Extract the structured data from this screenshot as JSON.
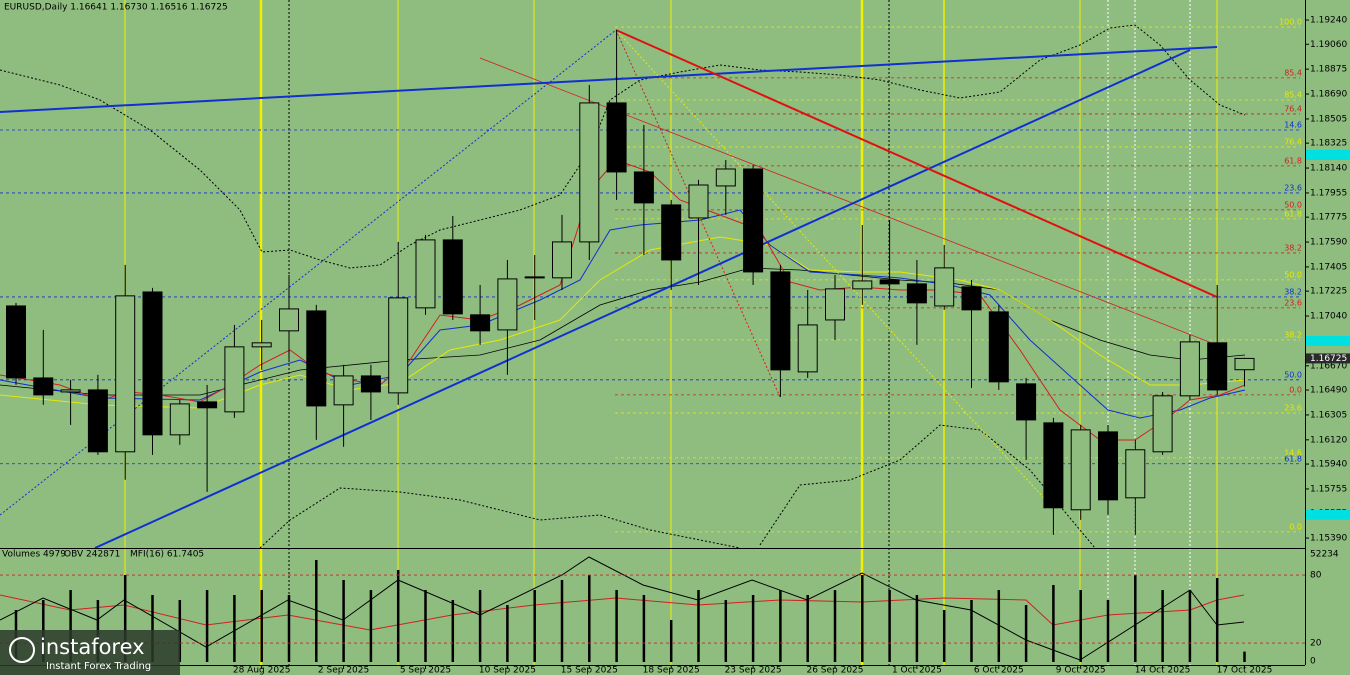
{
  "chart_data": {
    "type": "candlestick",
    "title": "EURUSD,Daily  1.16641 1.16730 1.16516 1.16725",
    "categories": [
      null,
      null,
      null,
      null,
      null,
      null,
      null,
      null,
      null,
      "28 Aug 2025",
      null,
      null,
      "2 Sep 2025",
      null,
      null,
      "5 Sep 2025",
      null,
      null,
      "10 Sep 2025",
      null,
      null,
      "15 Sep 2025",
      null,
      null,
      "18 Sep 2025",
      null,
      null,
      "23 Sep 2025",
      null,
      null,
      "26 Sep 2025",
      null,
      null,
      "1 Oct 2025",
      null,
      null,
      "6 Oct 2025",
      null,
      null,
      "9 Oct 2025",
      null,
      null,
      "14 Oct 2025",
      null,
      null,
      "17 Oct 2025"
    ],
    "open": [
      1.17115,
      1.1658,
      1.16476,
      1.16491,
      1.16031,
      1.17219,
      1.16157,
      1.16402,
      1.16328,
      1.16811,
      1.1693,
      1.17078,
      1.1638,
      1.16595,
      1.16469,
      1.17101,
      1.17606,
      1.17049,
      1.16937,
      1.17331,
      1.17324,
      1.17591,
      1.18624,
      1.18111,
      1.17866,
      1.17769,
      1.18007,
      1.18133,
      1.17368,
      1.16625,
      1.17011,
      1.17242,
      1.17309,
      1.17279,
      1.17115,
      1.17257,
      1.17071,
      1.16536,
      1.16246,
      1.156,
      1.16179,
      1.15689,
      1.16031,
      1.16447,
      1.16841,
      1.16641
    ],
    "high": [
      1.17138,
      1.16937,
      1.16566,
      1.16603,
      1.1742,
      1.17249,
      1.16417,
      1.16528,
      1.16974,
      1.17011,
      1.17346,
      1.17123,
      1.16677,
      1.16677,
      1.17591,
      1.17643,
      1.17784,
      1.17271,
      1.17457,
      1.17494,
      1.17792,
      1.18757,
      1.19166,
      1.1846,
      1.17903,
      1.18052,
      1.182,
      1.18163,
      1.1742,
      1.17234,
      1.17346,
      1.17717,
      1.17754,
      1.17457,
      1.17569,
      1.17309,
      1.17123,
      1.1658,
      1.16283,
      1.16231,
      1.16231,
      1.1612,
      1.16476,
      1.169,
      1.17271,
      1.1673
    ],
    "low": [
      1.16528,
      1.1638,
      1.16231,
      1.16008,
      1.15823,
      1.16008,
      1.16083,
      1.15733,
      1.16283,
      1.1664,
      1.16714,
      1.1612,
      1.16068,
      1.16268,
      1.1638,
      1.17049,
      1.17011,
      1.16826,
      1.16603,
      1.17011,
      1.17234,
      1.17457,
      1.17903,
      1.17494,
      1.17234,
      1.17271,
      1.17792,
      1.17271,
      1.16439,
      1.1658,
      1.16863,
      1.17123,
      1.1716,
      1.16826,
      1.17086,
      1.16506,
      1.16491,
      1.15971,
      1.15414,
      1.15525,
      1.15563,
      1.15414,
      1.16008,
      1.16417,
      1.16454,
      1.16516
    ],
    "close": [
      1.1658,
      1.16454,
      1.16491,
      1.16031,
      1.1719,
      1.16157,
      1.16387,
      1.16358,
      1.16811,
      1.16841,
      1.17093,
      1.16372,
      1.16595,
      1.16476,
      1.17175,
      1.17606,
      1.17056,
      1.1693,
      1.17316,
      1.17324,
      1.17591,
      1.18624,
      1.18111,
      1.17881,
      1.17457,
      1.18014,
      1.18133,
      1.17368,
      1.1664,
      1.16974,
      1.17242,
      1.17301,
      1.17279,
      1.17138,
      1.17398,
      1.17086,
      1.16551,
      1.16268,
      1.15615,
      1.16194,
      1.15674,
      1.16046,
      1.16447,
      1.16848,
      1.16491,
      1.16725
    ],
    "up_color": "#8fbd80",
    "down_color": "#000000",
    "ylim": [
      1.15316,
      1.19389
    ],
    "yticks": [
      {
        "value": 1.1924,
        "label": "1.19240"
      },
      {
        "value": 1.1906,
        "label": "1.19060"
      },
      {
        "value": 1.18875,
        "label": "1.18875"
      },
      {
        "value": 1.1869,
        "label": "1.18690"
      },
      {
        "value": 1.18505,
        "label": "1.18505"
      },
      {
        "value": 1.18325,
        "label": "1.18325"
      },
      {
        "value": 1.1814,
        "label": "1.18140"
      },
      {
        "value": 1.17955,
        "label": "1.17955"
      },
      {
        "value": 1.17775,
        "label": "1.17775"
      },
      {
        "value": 1.1759,
        "label": "1.17590"
      },
      {
        "value": 1.17405,
        "label": "1.17405"
      },
      {
        "value": 1.17225,
        "label": "1.17225"
      },
      {
        "value": 1.1704,
        "label": "1.17040"
      },
      {
        "value": 1.16855,
        "label": "1.16855"
      },
      {
        "value": 1.1667,
        "label": "1.16670"
      },
      {
        "value": 1.1649,
        "label": "1.16490"
      },
      {
        "value": 1.16305,
        "label": "1.16305"
      },
      {
        "value": 1.1612,
        "label": "1.16120"
      },
      {
        "value": 1.1594,
        "label": "1.15940"
      },
      {
        "value": 1.15755,
        "label": "1.15755"
      },
      {
        "value": 1.15575,
        "label": "1.15575"
      },
      {
        "value": 1.1539,
        "label": "1.15390"
      }
    ],
    "last_price": {
      "value": 1.16725,
      "label": "1.16725"
    },
    "alert_levels": [
      1.18237,
      1.16855,
      1.15563
    ],
    "fib_levels": [
      {
        "label": "100.0",
        "level": 1.19188,
        "color": "#e8e800"
      },
      {
        "label": "85.4",
        "level": 1.1881,
        "color": "#d02020"
      },
      {
        "label": "85.4",
        "level": 1.18646,
        "color": "#e8e800"
      },
      {
        "label": "76.4",
        "level": 1.18542,
        "color": "#d02020"
      },
      {
        "label": "14.6",
        "level": 1.18423,
        "color": "#1030d0"
      },
      {
        "label": "76.4",
        "level": 1.18297,
        "color": "#e8e800"
      },
      {
        "label": "61.8",
        "level": 1.18156,
        "color": "#d02020"
      },
      {
        "label": "23.6",
        "level": 1.17955,
        "color": "#1030d0"
      },
      {
        "label": "50.0",
        "level": 1.17829,
        "color": "#d02020"
      },
      {
        "label": "61.8",
        "level": 1.17762,
        "color": "#e8e800"
      },
      {
        "label": "38.2",
        "level": 1.17509,
        "color": "#d02020"
      },
      {
        "label": "50.0",
        "level": 1.17309,
        "color": "#e8e800"
      },
      {
        "label": "38.2",
        "level": 1.17182,
        "color": "#1030d0"
      },
      {
        "label": "23.6",
        "level": 1.17101,
        "color": "#d02020"
      },
      {
        "label": "38.2",
        "level": 1.16863,
        "color": "#e8e800"
      },
      {
        "label": "50.0",
        "level": 1.16566,
        "color": "#1030d0"
      },
      {
        "label": "0.0",
        "level": 1.16454,
        "color": "#d02020"
      },
      {
        "label": "23.6",
        "level": 1.1632,
        "color": "#e8e800"
      },
      {
        "label": "14.6",
        "level": 1.15986,
        "color": "#e8e800"
      },
      {
        "label": "61.8",
        "level": 1.15942,
        "color": "#1030d0"
      },
      {
        "label": "0.0",
        "level": 1.15436,
        "color": "#e8e800"
      }
    ],
    "indicator_panel": {
      "volumes_label": "Volumes 4979",
      "obv_label": "OBV 242871",
      "mfi_label": "MFI(16) 61.7405",
      "volume_lim": [
        0,
        52234
      ],
      "volume_max_label": "52234",
      "mfi_lim": [
        0,
        100
      ],
      "mfi_ticks": [
        80,
        20,
        0
      ],
      "volumes": [
        24918,
        29710,
        34502,
        29710,
        41690,
        32106,
        29710,
        34502,
        32106,
        34502,
        32106,
        48878,
        39294,
        34502,
        44086,
        34502,
        29710,
        34502,
        27314,
        34502,
        39294,
        41690,
        34502,
        32106,
        20126,
        34502,
        29710,
        32106,
        34502,
        32106,
        34502,
        41690,
        34502,
        32106,
        24918,
        29710,
        34502,
        27314,
        36898,
        34502,
        29710,
        41690,
        34502,
        34502,
        40253,
        4979
      ]
    },
    "watermark": {
      "brand": "instaforex",
      "tagline": "Instant Forex Trading"
    }
  }
}
